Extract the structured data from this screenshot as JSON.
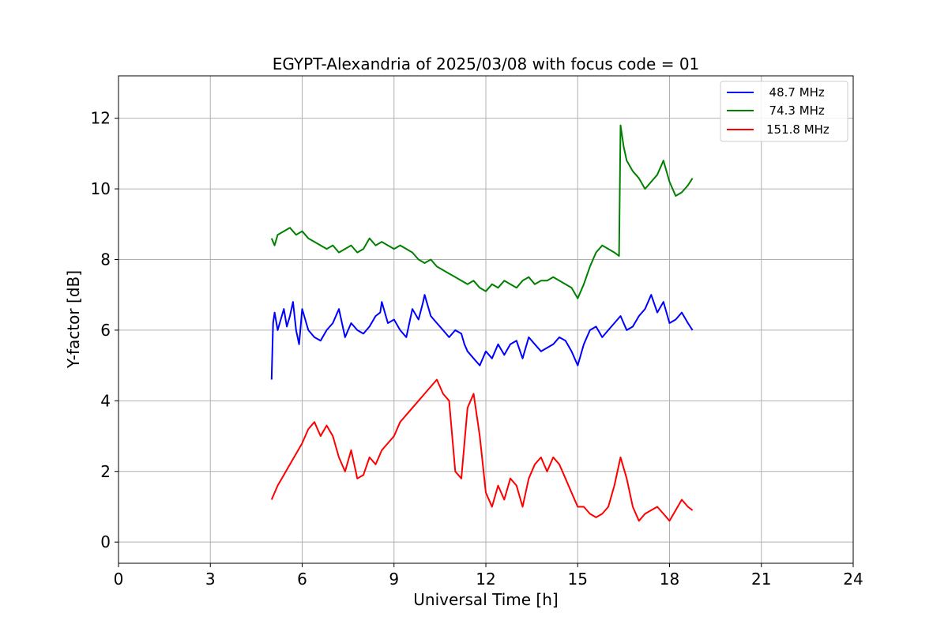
{
  "chart_data": {
    "type": "line",
    "title": "EGYPT-Alexandria of 2025/03/08 with focus code = 01",
    "xlabel": "Universal Time [h]",
    "ylabel": "Y-factor [dB]",
    "xlim": [
      0,
      24
    ],
    "ylim": [
      -0.6,
      13.2
    ],
    "xticks": [
      0,
      3,
      6,
      9,
      12,
      15,
      18,
      21,
      24
    ],
    "yticks": [
      0,
      2,
      4,
      6,
      8,
      10,
      12
    ],
    "grid": true,
    "legend_position": "top-right",
    "series": [
      {
        "name": "  48.7 MHz",
        "color": "#0000ff",
        "x": [
          5.0,
          5.05,
          5.1,
          5.2,
          5.3,
          5.4,
          5.5,
          5.6,
          5.7,
          5.8,
          5.9,
          6.0,
          6.2,
          6.4,
          6.6,
          6.8,
          7.0,
          7.2,
          7.4,
          7.6,
          7.8,
          8.0,
          8.2,
          8.4,
          8.55,
          8.6,
          8.8,
          9.0,
          9.2,
          9.4,
          9.6,
          9.8,
          9.95,
          10.0,
          10.2,
          10.4,
          10.6,
          10.8,
          11.0,
          11.2,
          11.3,
          11.4,
          11.6,
          11.8,
          12.0,
          12.2,
          12.4,
          12.6,
          12.8,
          13.0,
          13.2,
          13.4,
          13.6,
          13.8,
          14.0,
          14.2,
          14.4,
          14.6,
          14.8,
          15.0,
          15.2,
          15.4,
          15.6,
          15.8,
          16.0,
          16.2,
          16.4,
          16.6,
          16.8,
          17.0,
          17.2,
          17.4,
          17.6,
          17.8,
          18.0,
          18.2,
          18.4,
          18.6,
          18.75
        ],
        "y": [
          4.6,
          6.2,
          6.5,
          6.0,
          6.3,
          6.6,
          6.1,
          6.4,
          6.8,
          6.0,
          5.6,
          6.6,
          6.0,
          5.8,
          5.7,
          6.0,
          6.2,
          6.6,
          5.8,
          6.2,
          6.0,
          5.9,
          6.1,
          6.4,
          6.5,
          6.8,
          6.2,
          6.3,
          6.0,
          5.8,
          6.6,
          6.3,
          6.8,
          7.0,
          6.4,
          6.2,
          6.0,
          5.8,
          6.0,
          5.9,
          5.6,
          5.4,
          5.2,
          5.0,
          5.4,
          5.2,
          5.6,
          5.3,
          5.6,
          5.7,
          5.2,
          5.8,
          5.6,
          5.4,
          5.5,
          5.6,
          5.8,
          5.7,
          5.4,
          5.0,
          5.6,
          6.0,
          6.1,
          5.8,
          6.0,
          6.2,
          6.4,
          6.0,
          6.1,
          6.4,
          6.6,
          7.0,
          6.5,
          6.8,
          6.2,
          6.3,
          6.5,
          6.2,
          6.0
        ]
      },
      {
        "name": "  74.3 MHz",
        "color": "#008000",
        "x": [
          5.0,
          5.1,
          5.2,
          5.4,
          5.6,
          5.8,
          6.0,
          6.2,
          6.4,
          6.6,
          6.8,
          7.0,
          7.2,
          7.4,
          7.6,
          7.8,
          8.0,
          8.2,
          8.4,
          8.6,
          8.8,
          9.0,
          9.2,
          9.4,
          9.6,
          9.8,
          10.0,
          10.2,
          10.4,
          10.6,
          10.8,
          11.0,
          11.2,
          11.4,
          11.6,
          11.8,
          12.0,
          12.2,
          12.4,
          12.6,
          12.8,
          13.0,
          13.2,
          13.4,
          13.6,
          13.8,
          14.0,
          14.2,
          14.4,
          14.6,
          14.8,
          15.0,
          15.2,
          15.4,
          15.6,
          15.8,
          16.0,
          16.2,
          16.35,
          16.4,
          16.5,
          16.6,
          16.8,
          17.0,
          17.2,
          17.4,
          17.6,
          17.8,
          18.0,
          18.2,
          18.4,
          18.6,
          18.75
        ],
        "y": [
          8.6,
          8.4,
          8.7,
          8.8,
          8.9,
          8.7,
          8.8,
          8.6,
          8.5,
          8.4,
          8.3,
          8.4,
          8.2,
          8.3,
          8.4,
          8.2,
          8.3,
          8.6,
          8.4,
          8.5,
          8.4,
          8.3,
          8.4,
          8.3,
          8.2,
          8.0,
          7.9,
          8.0,
          7.8,
          7.7,
          7.6,
          7.5,
          7.4,
          7.3,
          7.4,
          7.2,
          7.1,
          7.3,
          7.2,
          7.4,
          7.3,
          7.2,
          7.4,
          7.5,
          7.3,
          7.4,
          7.4,
          7.5,
          7.4,
          7.3,
          7.2,
          6.9,
          7.3,
          7.8,
          8.2,
          8.4,
          8.3,
          8.2,
          8.1,
          11.8,
          11.2,
          10.8,
          10.5,
          10.3,
          10.0,
          10.2,
          10.4,
          10.8,
          10.2,
          9.8,
          9.9,
          10.1,
          10.3
        ]
      },
      {
        "name": "151.8 MHz",
        "color": "#ff0000",
        "x": [
          5.0,
          5.2,
          5.4,
          5.6,
          5.8,
          6.0,
          6.2,
          6.4,
          6.6,
          6.8,
          7.0,
          7.2,
          7.4,
          7.6,
          7.8,
          8.0,
          8.2,
          8.4,
          8.6,
          8.8,
          9.0,
          9.2,
          9.4,
          9.6,
          9.8,
          10.0,
          10.2,
          10.4,
          10.6,
          10.8,
          11.0,
          11.2,
          11.4,
          11.6,
          11.8,
          12.0,
          12.2,
          12.4,
          12.6,
          12.8,
          13.0,
          13.2,
          13.4,
          13.6,
          13.8,
          14.0,
          14.2,
          14.4,
          14.6,
          14.8,
          15.0,
          15.2,
          15.4,
          15.6,
          15.8,
          16.0,
          16.2,
          16.4,
          16.6,
          16.8,
          17.0,
          17.2,
          17.4,
          17.6,
          17.8,
          18.0,
          18.2,
          18.4,
          18.6,
          18.75
        ],
        "y": [
          1.2,
          1.6,
          1.9,
          2.2,
          2.5,
          2.8,
          3.2,
          3.4,
          3.0,
          3.3,
          3.0,
          2.4,
          2.0,
          2.6,
          1.8,
          1.9,
          2.4,
          2.2,
          2.6,
          2.8,
          3.0,
          3.4,
          3.6,
          3.8,
          4.0,
          4.2,
          4.4,
          4.6,
          4.2,
          4.0,
          2.0,
          1.8,
          3.8,
          4.2,
          3.0,
          1.4,
          1.0,
          1.6,
          1.2,
          1.8,
          1.6,
          1.0,
          1.8,
          2.2,
          2.4,
          2.0,
          2.4,
          2.2,
          1.8,
          1.4,
          1.0,
          1.0,
          0.8,
          0.7,
          0.8,
          1.0,
          1.6,
          2.4,
          1.8,
          1.0,
          0.6,
          0.8,
          0.9,
          1.0,
          0.8,
          0.6,
          0.9,
          1.2,
          1.0,
          0.9
        ]
      }
    ]
  }
}
